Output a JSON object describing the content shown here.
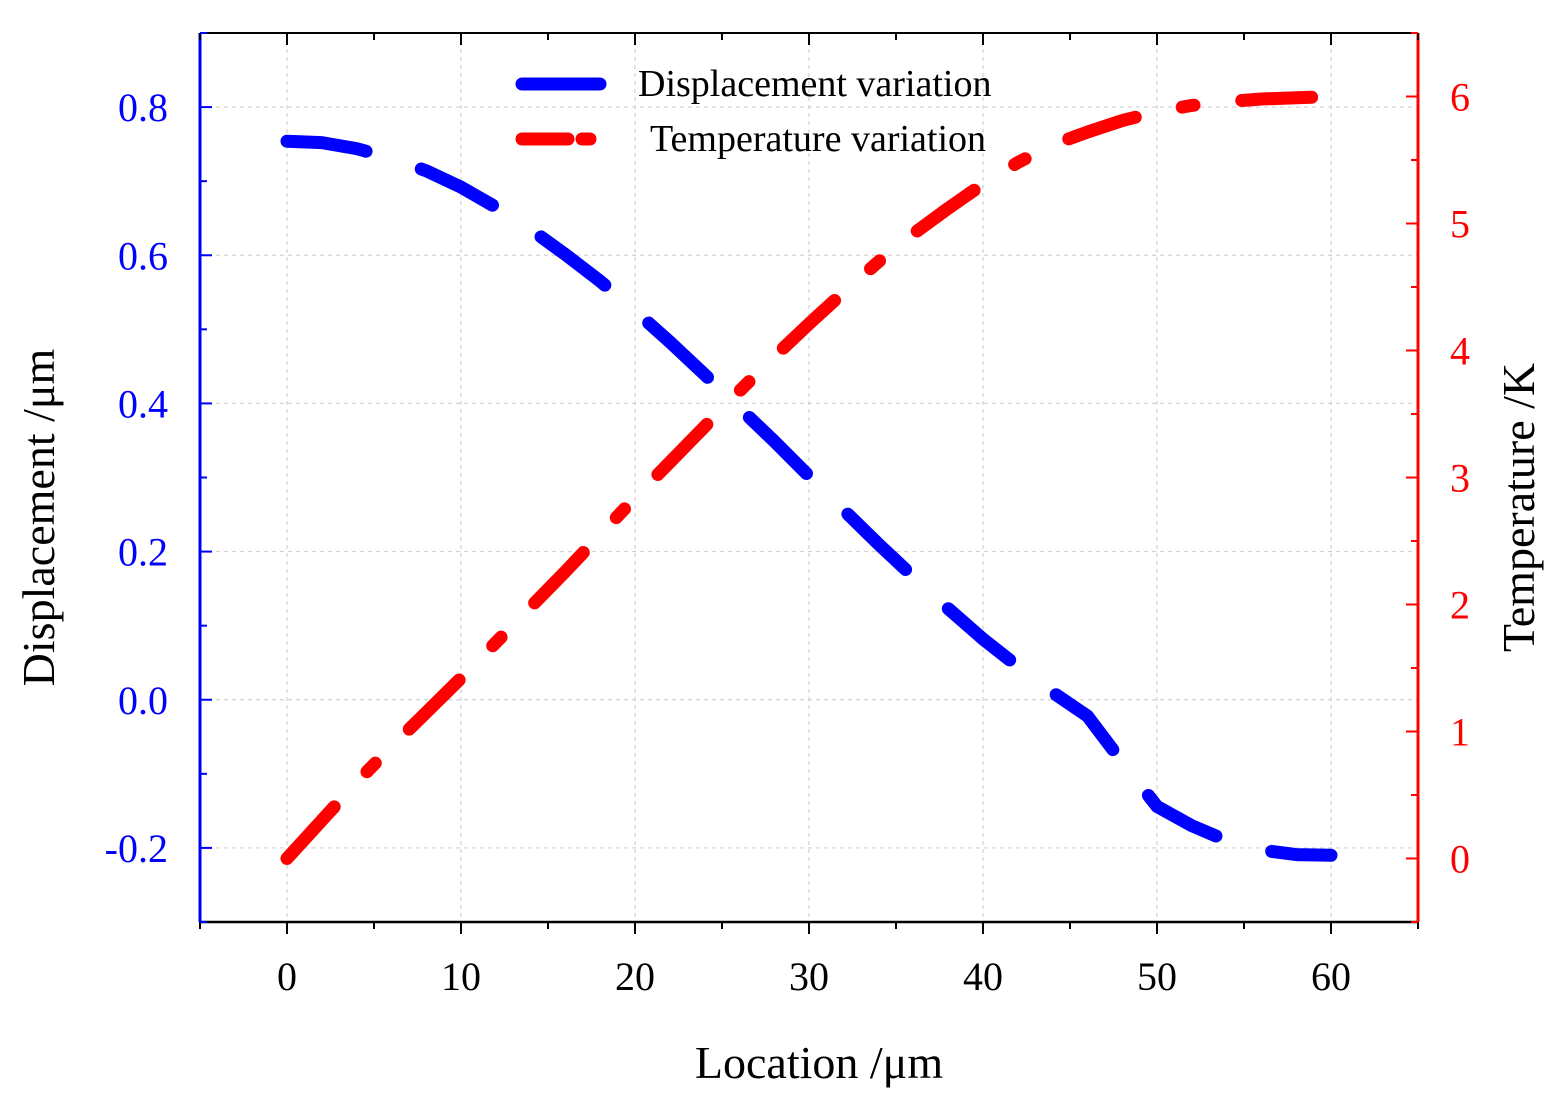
{
  "chart_data": {
    "type": "line",
    "x": [
      0,
      2,
      4,
      6,
      8,
      10,
      12,
      14,
      16,
      18,
      20,
      22,
      24,
      26,
      28,
      30,
      32,
      34,
      36,
      38,
      40,
      42,
      44,
      46,
      48,
      50,
      52,
      54,
      56,
      58,
      60
    ],
    "xlabel": "Location /μm",
    "ylabel_left": "Displacement /μm",
    "ylabel_right": "Temperature /K",
    "xlim": [
      -5,
      65
    ],
    "ylim_left": [
      -0.3,
      0.9
    ],
    "ylim_right": [
      -0.5,
      6.5
    ],
    "xticks": [
      0,
      10,
      20,
      30,
      40,
      50,
      60
    ],
    "xtick_labels": [
      "0",
      "10",
      "20",
      "30",
      "40",
      "50",
      "60"
    ],
    "yticks_left": [
      -0.2,
      0.0,
      0.2,
      0.4,
      0.6,
      0.8
    ],
    "ytick_labels_left": [
      "-0.2",
      "0.0",
      "0.2",
      "0.4",
      "0.6",
      "0.8"
    ],
    "yticks_right": [
      0,
      1,
      2,
      3,
      4,
      5,
      6
    ],
    "ytick_labels_right": [
      "0",
      "1",
      "2",
      "3",
      "4",
      "5",
      "6"
    ],
    "grid": true,
    "legend_position": "top-center",
    "series": [
      {
        "name": "Displacement variation",
        "axis": "left",
        "color": "#0000ff",
        "style": "dash",
        "values": [
          0.754,
          0.752,
          0.744,
          0.731,
          0.714,
          0.692,
          0.665,
          0.635,
          0.601,
          0.565,
          0.525,
          0.483,
          0.439,
          0.394,
          0.349,
          0.302,
          0.256,
          0.21,
          0.166,
          0.123,
          0.082,
          0.045,
          0.01,
          -0.022,
          -0.084,
          -0.144,
          -0.17,
          -0.19,
          -0.203,
          -0.209,
          -0.21
        ]
      },
      {
        "name": "Temperature variation",
        "axis": "right",
        "color": "#ff0000",
        "style": "dashdot",
        "values": [
          0.0,
          0.3,
          0.6,
          0.88,
          1.15,
          1.42,
          1.7,
          1.98,
          2.26,
          2.55,
          2.84,
          3.12,
          3.4,
          3.68,
          3.95,
          4.21,
          4.46,
          4.7,
          4.92,
          5.12,
          5.31,
          5.48,
          5.62,
          5.72,
          5.81,
          5.88,
          5.93,
          5.96,
          5.98,
          5.99,
          6.0
        ]
      }
    ]
  }
}
